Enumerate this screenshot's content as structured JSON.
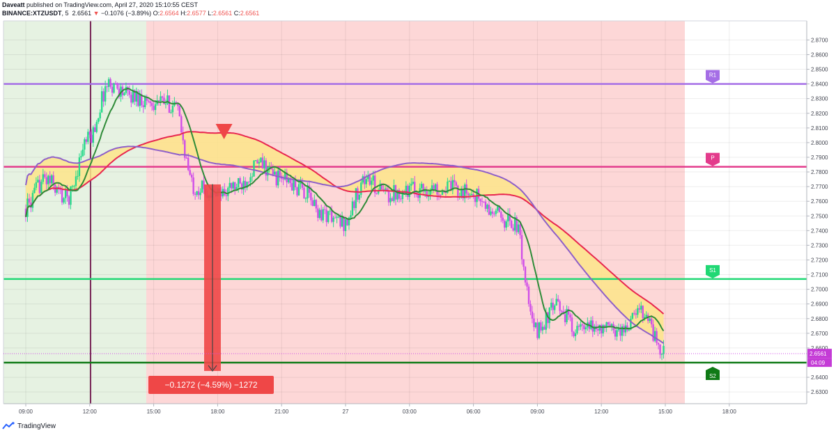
{
  "header": {
    "author": "Daveatt",
    "published_text": "published on TradingView.com, April 27, 2020 15:10:55 CEST",
    "symbol": "BINANCE:XTZUSDT",
    "interval": "5",
    "last": "2.6561",
    "arrow": "▼",
    "change": "−0.1076 (−3.89%)",
    "o_label": "O:",
    "o_value": "2.6564",
    "h_label": "H:",
    "h_value": "2.6577",
    "l_label": "L:",
    "l_value": "2.6561",
    "c_label": "C:",
    "c_value": "2.6561"
  },
  "footer": {
    "brand": "TradingView"
  },
  "colors": {
    "bull": "#26d98a",
    "bear": "#d04ee8",
    "ma_green": "#2e8b38",
    "ma_red": "#e8264f",
    "ma_purple": "#8e5fc9",
    "cloud": "#fde58a",
    "bg_green": "#e6f2e2",
    "bg_red": "#fdd7d7",
    "r1": "#a56ee6",
    "pivot": "#e33b8c",
    "s1": "#20d874",
    "s2": "#0f7a16",
    "measure": "#ef4747",
    "session": "#7a2a5a"
  },
  "chart_data": {
    "type": "candlestick",
    "y_range": [
      2.622,
      2.883
    ],
    "y_ticks": [
      "2.8700",
      "2.8600",
      "2.8500",
      "2.8400",
      "2.8300",
      "2.8200",
      "2.8100",
      "2.8000",
      "2.7900",
      "2.7800",
      "2.7700",
      "2.7600",
      "2.7500",
      "2.7400",
      "2.7300",
      "2.7200",
      "2.7100",
      "2.7000",
      "2.6900",
      "2.6800",
      "2.6700",
      "2.6600",
      "2.6500",
      "2.6400",
      "2.6300"
    ],
    "x_ticks": [
      "09:00",
      "12:00",
      "15:00",
      "18:00",
      "21:00",
      "27",
      "03:00",
      "06:00",
      "09:00",
      "12:00",
      "15:00",
      "18:00"
    ],
    "levels": [
      {
        "name": "R1",
        "value": 2.84
      },
      {
        "name": "P",
        "value": 2.7835
      },
      {
        "name": "S1",
        "value": 2.707
      },
      {
        "name": "S2",
        "value": 2.65
      }
    ],
    "price_label": "2.6561",
    "countdown": "04:09",
    "measure_label": "−0.1272 (−4.59%) −1272",
    "measure": {
      "start_price": 2.7715,
      "end_price": 2.6443
    },
    "price_path": [
      [
        "09:00",
        2.755
      ],
      [
        "10:00",
        2.775
      ],
      [
        "11:00",
        2.762
      ],
      [
        "12:00",
        2.802
      ],
      [
        "13:00",
        2.84
      ],
      [
        "14:00",
        2.832
      ],
      [
        "15:00",
        2.828
      ],
      [
        "16:00",
        2.826
      ],
      [
        "17:00",
        2.77
      ],
      [
        "18:00",
        2.765
      ],
      [
        "19:00",
        2.77
      ],
      [
        "20:00",
        2.785
      ],
      [
        "21:00",
        2.776
      ],
      [
        "22:00",
        2.768
      ],
      [
        "23:00",
        2.752
      ],
      [
        "00:00",
        2.745
      ],
      [
        "01:00",
        2.775
      ],
      [
        "02:00",
        2.765
      ],
      [
        "03:00",
        2.768
      ],
      [
        "04:00",
        2.768
      ],
      [
        "05:00",
        2.769
      ],
      [
        "06:00",
        2.765
      ],
      [
        "07:00",
        2.752
      ],
      [
        "08:00",
        2.745
      ],
      [
        "09:00",
        2.672
      ],
      [
        "10:00",
        2.688
      ],
      [
        "11:00",
        2.672
      ],
      [
        "12:00",
        2.674
      ],
      [
        "13:00",
        2.672
      ],
      [
        "14:00",
        2.686
      ],
      [
        "15:00",
        2.656
      ]
    ]
  }
}
